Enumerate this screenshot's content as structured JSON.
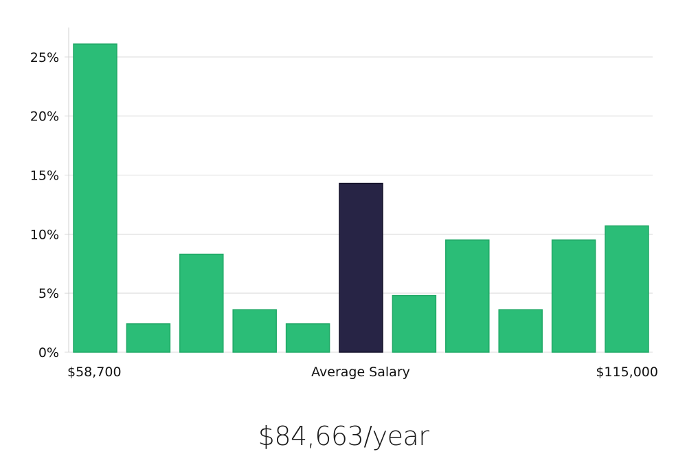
{
  "chart_data": {
    "type": "bar",
    "title": "",
    "xlabel": "Average Salary",
    "ylabel": "",
    "x_min_label": "$58,700",
    "x_max_label": "$115,000",
    "ylim": [
      0,
      27.5
    ],
    "yticks": [
      0,
      5,
      10,
      15,
      20,
      25
    ],
    "ytick_labels": [
      "0%",
      "5%",
      "10%",
      "15%",
      "20%",
      "25%"
    ],
    "values": [
      26.1,
      2.4,
      8.3,
      3.6,
      2.4,
      14.3,
      4.8,
      9.5,
      3.6,
      9.5,
      10.7
    ],
    "highlight_index": 5,
    "colors": {
      "bar": "#2bbd77",
      "bar_edge": "#20a866",
      "highlight": "#272445",
      "highlight_edge": "#15122a"
    }
  },
  "salary": {
    "value": "$84,663/year"
  }
}
